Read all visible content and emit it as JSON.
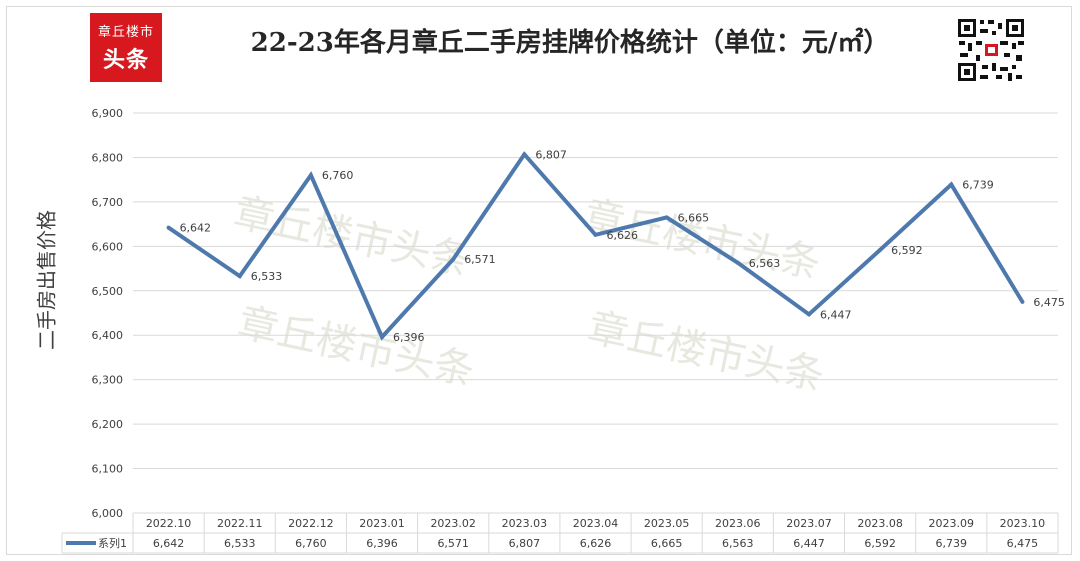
{
  "logo": {
    "line1": "章丘楼市",
    "line2": "头条"
  },
  "title": "22-23年各月章丘二手房挂牌价格统计（单位：元/㎡）",
  "watermark": "章丘楼市头条",
  "colors": {
    "line": "#4e79ad",
    "logo_bg": "#d7191f",
    "grid": "#d9d9d9",
    "text": "#404040"
  },
  "chart_data": {
    "type": "line",
    "title": "22-23年各月章丘二手房挂牌价格统计（单位：元/㎡）",
    "xlabel": "",
    "ylabel": "二手房出售价格",
    "categories": [
      "2022.10",
      "2022.11",
      "2022.12",
      "2023.01",
      "2023.02",
      "2023.03",
      "2023.04",
      "2023.05",
      "2023.06",
      "2023.07",
      "2023.08",
      "2023.09",
      "2023.10"
    ],
    "series": [
      {
        "name": "系列1",
        "values": [
          6642,
          6533,
          6760,
          6396,
          6571,
          6807,
          6626,
          6665,
          6563,
          6447,
          6592,
          6739,
          6475
        ]
      }
    ],
    "ylim": [
      6000,
      6900
    ],
    "yticks": [
      6000,
      6100,
      6200,
      6300,
      6400,
      6500,
      6600,
      6700,
      6800,
      6900
    ],
    "ytick_labels": [
      "6,000",
      "6,100",
      "6,200",
      "6,300",
      "6,400",
      "6,500",
      "6,600",
      "6,700",
      "6,800",
      "6,900"
    ],
    "data_labels": [
      "6,642",
      "6,533",
      "6,760",
      "6,396",
      "6,571",
      "6,807",
      "6,626",
      "6,665",
      "6,563",
      "6,447",
      "6,592",
      "6,739",
      "6,475"
    ],
    "grid": true,
    "legend": "data-table-bottom"
  }
}
